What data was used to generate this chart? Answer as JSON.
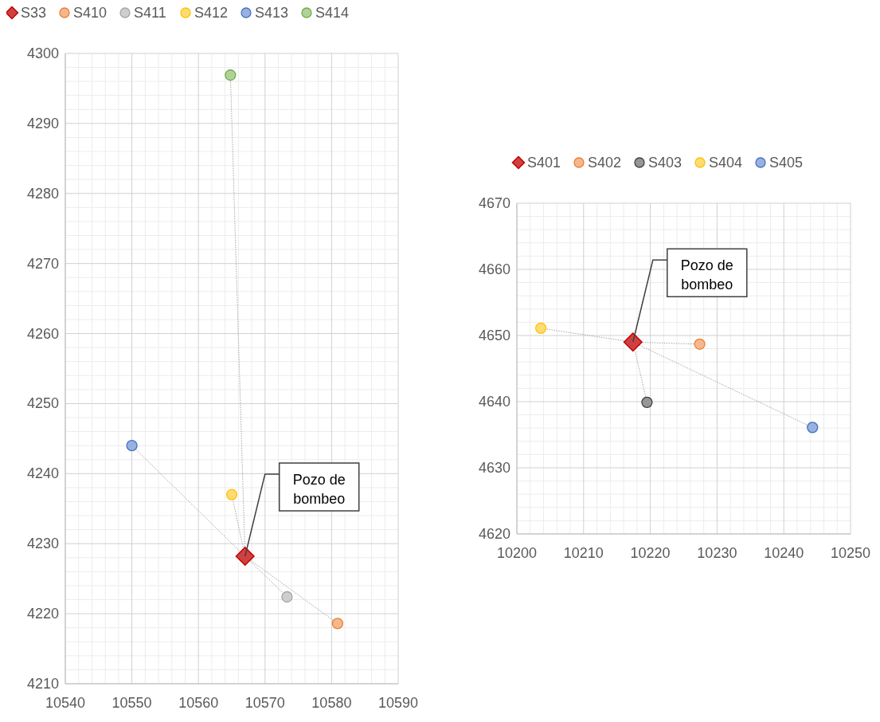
{
  "chart_data": [
    {
      "type": "scatter",
      "marker": "circle",
      "grid": true,
      "legend": "top",
      "xlim": [
        10540,
        10590
      ],
      "xticks": [
        10540,
        10550,
        10560,
        10570,
        10580,
        10590
      ],
      "ylim": [
        4210,
        4300
      ],
      "yticks": [
        4210,
        4220,
        4230,
        4240,
        4250,
        4260,
        4270,
        4280,
        4290,
        4300
      ],
      "series": [
        {
          "type": "line",
          "color": "#a6a6a6",
          "line_style": "dotted",
          "marker": "none",
          "x": [
            10567.0,
            10580.9
          ],
          "values": [
            4228.2,
            4218.6
          ]
        },
        {
          "type": "line",
          "color": "#a6a6a6",
          "line_style": "dotted",
          "marker": "none",
          "x": [
            10567.0,
            10573.3
          ],
          "values": [
            4228.2,
            4222.4
          ]
        },
        {
          "type": "line",
          "color": "#a6a6a6",
          "line_style": "dotted",
          "marker": "none",
          "x": [
            10567.0,
            10565.0
          ],
          "values": [
            4228.2,
            4237.0
          ]
        },
        {
          "type": "line",
          "color": "#a6a6a6",
          "line_style": "dotted",
          "marker": "none",
          "x": [
            10567.0,
            10550.0
          ],
          "values": [
            4228.2,
            4244.0
          ]
        },
        {
          "type": "line",
          "color": "#a6a6a6",
          "line_style": "dotted",
          "marker": "none",
          "x": [
            10567.0,
            10564.8
          ],
          "values": [
            4228.2,
            4296.9
          ]
        },
        {
          "name": "S33",
          "marker": "diamond",
          "color": "#c00000",
          "x": [
            10567.0
          ],
          "values": [
            4228.2
          ]
        },
        {
          "name": "S410",
          "color": "#ed7d31",
          "x": [
            10580.9
          ],
          "values": [
            4218.6
          ]
        },
        {
          "name": "S411",
          "color": "#a5a5a5",
          "x": [
            10573.3
          ],
          "values": [
            4222.4
          ]
        },
        {
          "name": "S412",
          "color": "#ffc000",
          "x": [
            10565.0
          ],
          "values": [
            4237.0
          ]
        },
        {
          "name": "S413",
          "color": "#4472c4",
          "x": [
            10550.0
          ],
          "values": [
            4244.0
          ]
        },
        {
          "name": "S414",
          "color": "#70ad47",
          "x": [
            10564.8
          ],
          "values": [
            4296.9
          ]
        }
      ],
      "annotations": [
        {
          "text": "Pozo de bombeo",
          "x": 10567.0,
          "y": 4228.2
        }
      ]
    },
    {
      "type": "scatter",
      "marker": "circle",
      "grid": true,
      "legend": "top",
      "xlim": [
        10200,
        10250
      ],
      "xticks": [
        10200,
        10210,
        10220,
        10230,
        10240,
        10250
      ],
      "ylim": [
        4620,
        4670
      ],
      "yticks": [
        4620,
        4630,
        4640,
        4650,
        4660,
        4670
      ],
      "series": [
        {
          "type": "line",
          "color": "#a6a6a6",
          "line_style": "dotted",
          "marker": "none",
          "x": [
            10217.4,
            10227.4
          ],
          "values": [
            4649.0,
            4648.7
          ]
        },
        {
          "type": "line",
          "color": "#a6a6a6",
          "line_style": "dotted",
          "marker": "none",
          "x": [
            10217.4,
            10219.5
          ],
          "values": [
            4649.0,
            4639.9
          ]
        },
        {
          "type": "line",
          "color": "#a6a6a6",
          "line_style": "dotted",
          "marker": "none",
          "x": [
            10217.4,
            10203.6
          ],
          "values": [
            4649.0,
            4651.1
          ]
        },
        {
          "type": "line",
          "color": "#a6a6a6",
          "line_style": "dotted",
          "marker": "none",
          "x": [
            10217.4,
            10244.3
          ],
          "values": [
            4649.0,
            4636.1
          ]
        },
        {
          "name": "S401",
          "marker": "diamond",
          "color": "#c00000",
          "x": [
            10217.4
          ],
          "values": [
            4649.0
          ]
        },
        {
          "name": "S402",
          "color": "#ed7d31",
          "x": [
            10227.4
          ],
          "values": [
            4648.7
          ]
        },
        {
          "name": "S403",
          "color": "#404040",
          "x": [
            10219.5
          ],
          "values": [
            4639.9
          ]
        },
        {
          "name": "S404",
          "color": "#ffc000",
          "x": [
            10203.6
          ],
          "values": [
            4651.1
          ]
        },
        {
          "name": "S405",
          "color": "#4472c4",
          "x": [
            10244.3
          ],
          "values": [
            4636.1
          ]
        }
      ],
      "annotations": [
        {
          "text": "Pozo de bombeo",
          "x": 10217.4,
          "y": 4649.0
        }
      ]
    }
  ]
}
